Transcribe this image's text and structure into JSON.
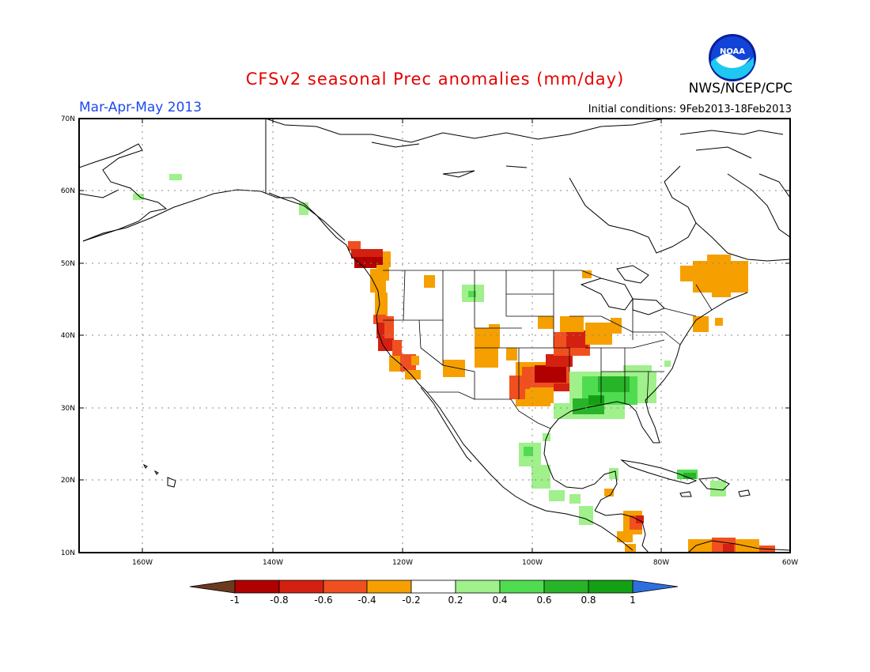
{
  "header": {
    "title": "CFSv2 seasonal Prec anomalies (mm/day)",
    "season": "Mar-Apr-May 2013",
    "initial_conditions": "Initial conditions: 9Feb2013-18Feb2013",
    "agency": "NWS/NCEP/CPC",
    "logo_text": "NOAA"
  },
  "map": {
    "lon_range": [
      -173,
      -60
    ],
    "lat_range": [
      10,
      70
    ],
    "lat_labels": [
      "70N",
      "60N",
      "50N",
      "40N",
      "30N",
      "20N",
      "10N"
    ],
    "lon_labels": [
      "160W",
      "140W",
      "120W",
      "100W",
      "80W",
      "60W"
    ]
  },
  "colorbar": {
    "labels": [
      "-1",
      "-0.8",
      "-0.6",
      "-0.4",
      "-0.2",
      "0.2",
      "0.4",
      "0.6",
      "0.8",
      "1"
    ],
    "colors": {
      "below_min": "#6b3a1f",
      "c1": "#b00000",
      "c2": "#d42010",
      "c3": "#f05020",
      "c4": "#f5a000",
      "neutral": "#ffffff",
      "c5": "#a0f08c",
      "c6": "#50dc50",
      "c7": "#28b428",
      "c8": "#14a014",
      "above_max": "#2e6fe0"
    }
  },
  "anomaly_regions": [
    {
      "name": "pacific-nw-dry",
      "value": -0.8
    },
    {
      "name": "california-coast-dry",
      "value": -0.6
    },
    {
      "name": "southern-plains-dry",
      "value": -0.8
    },
    {
      "name": "gulf-coast-wet",
      "value": 0.6
    },
    {
      "name": "quebec-dry",
      "value": -0.4
    },
    {
      "name": "mexico-wet",
      "value": 0.4
    },
    {
      "name": "caribbean-wet",
      "value": 0.6
    }
  ]
}
